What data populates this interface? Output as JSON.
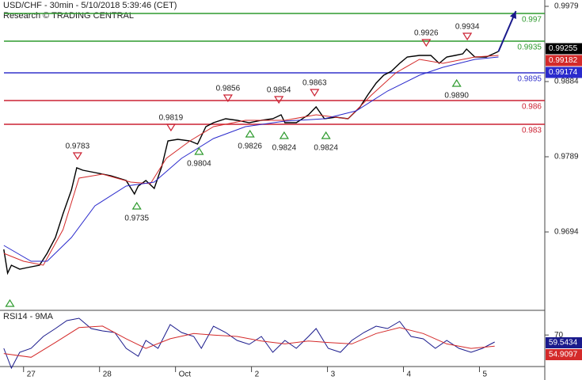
{
  "header": {
    "title": "USD/CHF - 30min - 5/10/2018 5:39:46 (CET)",
    "subtitle": "Research © TRADING CENTRAL"
  },
  "chart_data": [
    {
      "type": "price",
      "xlim": [
        -0.31,
        6.86
      ],
      "ylim": [
        0.9597,
        0.9987
      ],
      "yticks": [
        0.9979,
        0.9884,
        0.9789,
        0.9694
      ],
      "xticks": [
        {
          "value": 0,
          "label": "27"
        },
        {
          "value": 1,
          "label": "28"
        },
        {
          "value": 2,
          "label": "Oct"
        },
        {
          "value": 3,
          "label": "2"
        },
        {
          "value": 4,
          "label": "3"
        },
        {
          "value": 5,
          "label": "4"
        },
        {
          "value": 6,
          "label": "5"
        }
      ],
      "series": [
        {
          "color": "#000000",
          "x": [
            -0.26,
            -0.21,
            -0.16,
            -0.05,
            0.05,
            0.21,
            0.31,
            0.42,
            0.52,
            0.63,
            0.7,
            0.78,
            0.94,
            1.15,
            1.35,
            1.46,
            1.51,
            1.61,
            1.72,
            1.82,
            1.9,
            2.03,
            2.19,
            2.29,
            2.4,
            2.5,
            2.66,
            2.81,
            2.97,
            3.13,
            3.28,
            3.39,
            3.44,
            3.59,
            3.75,
            3.85,
            3.96,
            4.11,
            4.27,
            4.43,
            4.53,
            4.64,
            4.74,
            4.84,
            4.95,
            5.05,
            5.21,
            5.36,
            5.47,
            5.57,
            5.68,
            5.78,
            5.83,
            5.94,
            6.09,
            6.25
          ],
          "values": [
            0.9672,
            0.9642,
            0.9652,
            0.9647,
            0.9649,
            0.9652,
            0.9667,
            0.9687,
            0.9717,
            0.9747,
            0.9775,
            0.9772,
            0.9769,
            0.9765,
            0.9759,
            0.9742,
            0.9752,
            0.9759,
            0.9749,
            0.9777,
            0.9809,
            0.9811,
            0.9809,
            0.9805,
            0.9827,
            0.9832,
            0.9837,
            0.9835,
            0.9832,
            0.9835,
            0.9837,
            0.9842,
            0.9832,
            0.9832,
            0.9842,
            0.9852,
            0.9837,
            0.9839,
            0.9837,
            0.9852,
            0.9867,
            0.9882,
            0.9892,
            0.9897,
            0.9907,
            0.9915,
            0.9917,
            0.9917,
            0.9907,
            0.9915,
            0.9917,
            0.9919,
            0.9925,
            0.9915,
            0.9915,
            0.9922
          ]
        },
        {
          "color": "#d42a2a",
          "x": [
            -0.26,
            0.0,
            0.26,
            0.52,
            0.73,
            1.04,
            1.41,
            1.67,
            1.88,
            2.19,
            2.5,
            2.92,
            3.44,
            3.85,
            4.27,
            4.58,
            4.9,
            5.21,
            5.52,
            5.94,
            6.25
          ],
          "values": [
            0.9667,
            0.9657,
            0.9652,
            0.9697,
            0.9762,
            0.9767,
            0.9757,
            0.9755,
            0.9787,
            0.9809,
            0.9827,
            0.9835,
            0.9835,
            0.9842,
            0.9837,
            0.9867,
            0.9895,
            0.9912,
            0.9907,
            0.9915,
            0.9917
          ]
        },
        {
          "color": "#2a2acc",
          "x": [
            -0.26,
            0.1,
            0.31,
            0.63,
            0.94,
            1.35,
            1.72,
            2.08,
            2.5,
            2.92,
            3.44,
            3.96,
            4.38,
            4.79,
            5.21,
            5.52,
            5.94,
            6.25
          ],
          "values": [
            0.9677,
            0.9657,
            0.9657,
            0.9687,
            0.9727,
            0.9752,
            0.9757,
            0.9787,
            0.9812,
            0.9827,
            0.9834,
            0.9837,
            0.9847,
            0.9872,
            0.9892,
            0.9902,
            0.9912,
            0.9915
          ]
        }
      ],
      "forecast": {
        "color": "#1a1a8c",
        "x": [
          6.25,
          6.48
        ],
        "values": [
          0.9922,
          0.9973
        ]
      },
      "levels": [
        {
          "value": 0.997,
          "color": "#2e9a2e"
        },
        {
          "value": 0.9935,
          "color": "#2e9a2e"
        },
        {
          "value": 0.9895,
          "color": "#3333cc"
        },
        {
          "value": 0.986,
          "color": "#cc2233"
        },
        {
          "value": 0.983,
          "color": "#cc2233"
        }
      ],
      "annotations": [
        {
          "kind": "low",
          "x": -0.18,
          "value": 0.9612
        },
        {
          "kind": "high",
          "x": 0.71,
          "value": 0.9783,
          "label": 0.9783
        },
        {
          "kind": "low",
          "x": 1.49,
          "value": 0.9735,
          "label": 0.9735
        },
        {
          "kind": "high",
          "x": 1.94,
          "value": 0.9819,
          "label": 0.9819
        },
        {
          "kind": "low",
          "x": 2.31,
          "value": 0.9804,
          "label": 0.9804
        },
        {
          "kind": "high",
          "x": 2.69,
          "value": 0.9856,
          "label": 0.9856
        },
        {
          "kind": "low",
          "x": 2.98,
          "value": 0.9826,
          "label": 0.9826
        },
        {
          "kind": "high",
          "x": 3.36,
          "value": 0.9854,
          "label": 0.9854
        },
        {
          "kind": "low",
          "x": 3.43,
          "value": 0.9824,
          "label": 0.9824
        },
        {
          "kind": "high",
          "x": 3.83,
          "value": 0.9863,
          "label": 0.9863
        },
        {
          "kind": "low",
          "x": 3.98,
          "value": 0.9824,
          "label": 0.9824
        },
        {
          "kind": "high",
          "x": 5.3,
          "value": 0.9926,
          "label": 0.9926
        },
        {
          "kind": "low",
          "x": 5.7,
          "value": 0.989,
          "label": "0.9890"
        },
        {
          "kind": "high",
          "x": 5.84,
          "value": 0.9934,
          "label": 0.9934
        }
      ],
      "price_tags": [
        {
          "value": 0.99255,
          "color": "#000000"
        },
        {
          "value": 0.99182,
          "color": "#d42a2a"
        },
        {
          "value": 0.99174,
          "color": "#2a2acc"
        }
      ]
    },
    {
      "type": "rsi",
      "title": "RSI14 - 9MA",
      "xlim": [
        -0.31,
        6.86
      ],
      "ylim": [
        18,
        100
      ],
      "yticks": [
        70
      ],
      "series": [
        {
          "color": "#1a1a8c",
          "x": [
            -0.26,
            -0.16,
            -0.05,
            0.1,
            0.26,
            0.42,
            0.57,
            0.73,
            0.89,
            1.04,
            1.2,
            1.35,
            1.51,
            1.61,
            1.77,
            1.93,
            2.08,
            2.24,
            2.34,
            2.5,
            2.66,
            2.81,
            2.97,
            3.13,
            3.28,
            3.44,
            3.59,
            3.75,
            3.85,
            4.01,
            4.17,
            4.32,
            4.48,
            4.64,
            4.79,
            4.95,
            5.1,
            5.26,
            5.42,
            5.57,
            5.73,
            5.89,
            6.04,
            6.2
          ],
          "values": [
            52.1,
            25.5,
            46.8,
            52.1,
            68.1,
            78.7,
            89.4,
            92.5,
            78.7,
            75.5,
            73.4,
            52.1,
            41.4,
            62.7,
            52.1,
            84.0,
            73.4,
            68.1,
            52.1,
            81.9,
            73.4,
            62.7,
            57.4,
            68.1,
            46.8,
            62.7,
            52.1,
            68.1,
            78.7,
            52.1,
            46.8,
            62.7,
            73.4,
            81.9,
            78.7,
            88.3,
            68.1,
            64.9,
            52.1,
            62.7,
            52.1,
            46.8,
            52.1,
            60.6
          ]
        },
        {
          "color": "#d42a2a",
          "x": [
            -0.26,
            0.1,
            0.42,
            0.73,
            1.04,
            1.35,
            1.61,
            1.93,
            2.24,
            2.5,
            2.81,
            3.13,
            3.44,
            3.75,
            4.01,
            4.32,
            4.64,
            4.95,
            5.26,
            5.57,
            5.89,
            6.2
          ],
          "values": [
            45,
            40,
            60,
            80,
            82,
            65,
            52,
            65,
            72,
            70,
            68,
            62,
            58,
            62,
            60,
            58,
            72,
            80,
            72,
            58,
            52,
            55
          ]
        }
      ],
      "price_tags": [
        {
          "value": 59.5434,
          "color": "#1a1a8c"
        },
        {
          "value": 54.9097,
          "color": "#d42a2a"
        }
      ]
    }
  ]
}
